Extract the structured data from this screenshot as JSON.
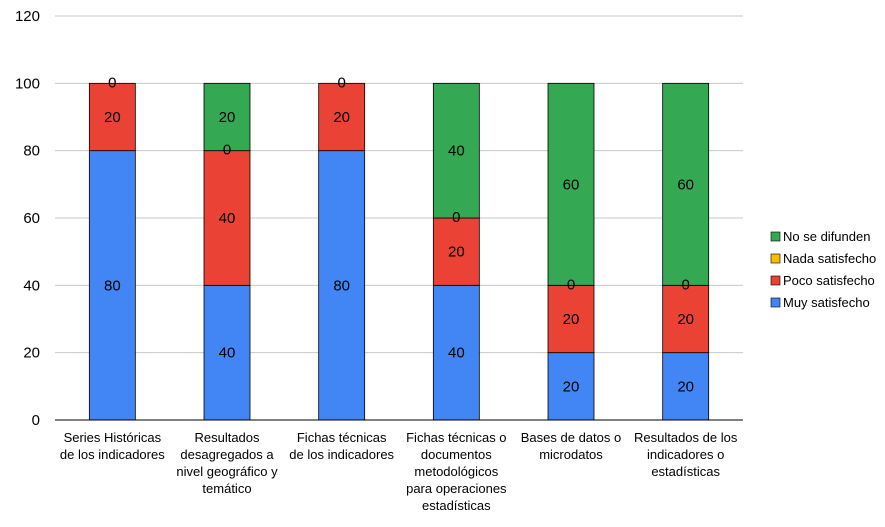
{
  "chart_data": {
    "type": "bar",
    "stacked": true,
    "categories": [
      "Series Históricas de los indicadores",
      "Resultados desagregados a nivel geográfico y temático",
      "Fichas técnicas de los indicadores",
      "Fichas técnicas o documentos metodológicos para operaciones estadísticas",
      "Bases de datos o microdatos",
      "Resultados de los indicadores o estadísticas"
    ],
    "category_lines": [
      [
        "Series Históricas",
        "de los indicadores"
      ],
      [
        "Resultados",
        "desagregados a",
        "nivel geográfico y",
        "temático"
      ],
      [
        "Fichas técnicas",
        "de los indicadores"
      ],
      [
        "Fichas técnicas o",
        "documentos",
        "metodológicos",
        "para operaciones",
        "estadísticas"
      ],
      [
        "Bases de datos o",
        "microdatos"
      ],
      [
        "Resultados de los",
        "indicadores o",
        "estadísticas"
      ]
    ],
    "series": [
      {
        "name": "Muy satisfecho",
        "color": "#4285f4",
        "values": [
          80,
          40,
          80,
          40,
          20,
          20
        ]
      },
      {
        "name": "Poco satisfecho",
        "color": "#ea4335",
        "values": [
          20,
          40,
          20,
          20,
          20,
          20
        ]
      },
      {
        "name": "Nada satisfecho",
        "color": "#fbbc04",
        "values": [
          0,
          0,
          0,
          0,
          0,
          0
        ]
      },
      {
        "name": "No se difunden",
        "color": "#34a853",
        "values": [
          0,
          20,
          0,
          40,
          60,
          60
        ]
      }
    ],
    "ylim": [
      0,
      120
    ],
    "yticks": [
      0,
      20,
      40,
      60,
      80,
      100,
      120
    ],
    "grid": true,
    "legend": "right"
  }
}
